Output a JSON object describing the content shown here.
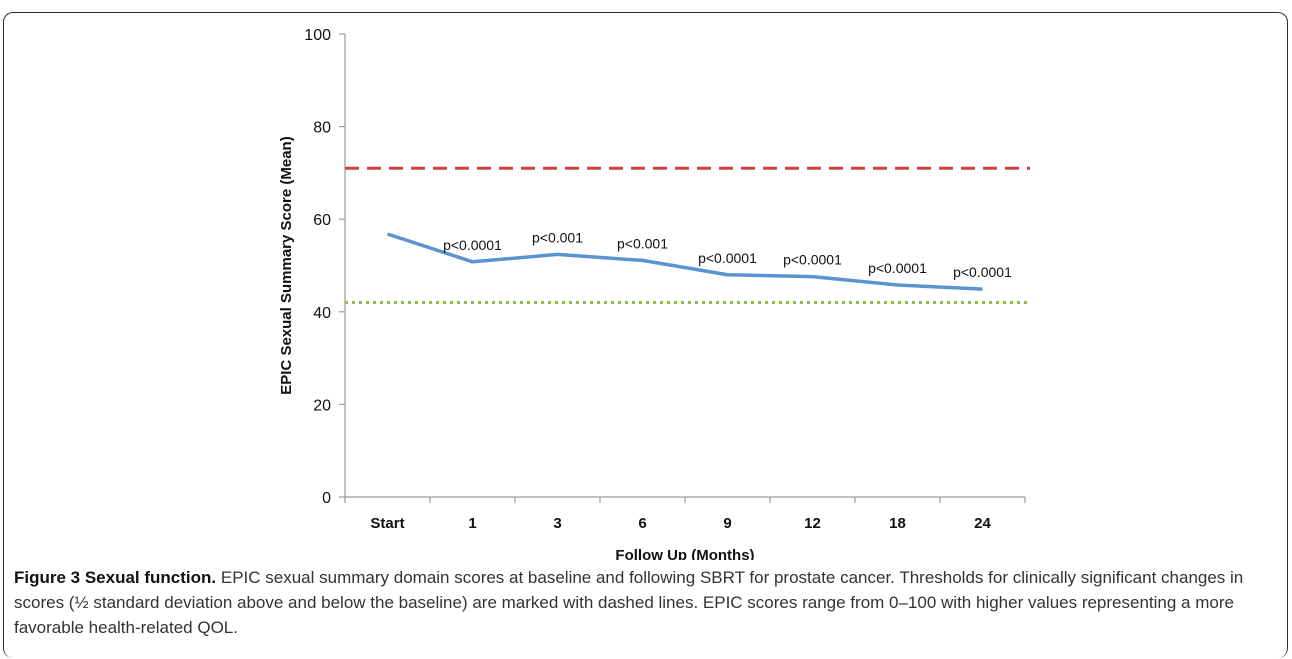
{
  "chart_data": {
    "type": "line",
    "ylabel": "EPIC Sexual Summary Score (Mean)",
    "xlabel": "Follow Up (Months)",
    "categories": [
      "Start",
      "1",
      "3",
      "6",
      "9",
      "12",
      "18",
      "24"
    ],
    "ylim": [
      0,
      100
    ],
    "yticks": [
      0,
      20,
      40,
      60,
      80,
      100
    ],
    "series": [
      {
        "values": [
          56.8,
          50.8,
          52.4,
          51.1,
          48.0,
          47.6,
          45.8,
          44.9
        ],
        "color": "#5b93cf",
        "style": "solid"
      }
    ],
    "reference_lines": [
      {
        "value": 71.0,
        "color": "#c9443e",
        "style": "dashed"
      },
      {
        "value": 42.0,
        "color": "#8fbc4a",
        "style": "dotted"
      }
    ],
    "annotations": [
      {
        "category": "1",
        "text": "p<0.0001"
      },
      {
        "category": "3",
        "text": "p<0.001"
      },
      {
        "category": "6",
        "text": "p<0.001"
      },
      {
        "category": "9",
        "text": "p<0.0001"
      },
      {
        "category": "12",
        "text": "p<0.0001"
      },
      {
        "category": "18",
        "text": "p<0.0001"
      },
      {
        "category": "24",
        "text": "p<0.0001"
      }
    ],
    "grid": false,
    "legend": "none"
  },
  "caption": {
    "title": "Figure 3 Sexual function.",
    "text": "EPIC sexual summary domain scores at baseline and following SBRT for prostate cancer. Thresholds for clinically significant changes in scores (½ standard deviation above and below the baseline) are marked with dashed lines. EPIC scores range from 0–100 with higher values representing a more favorable health-related QOL."
  }
}
